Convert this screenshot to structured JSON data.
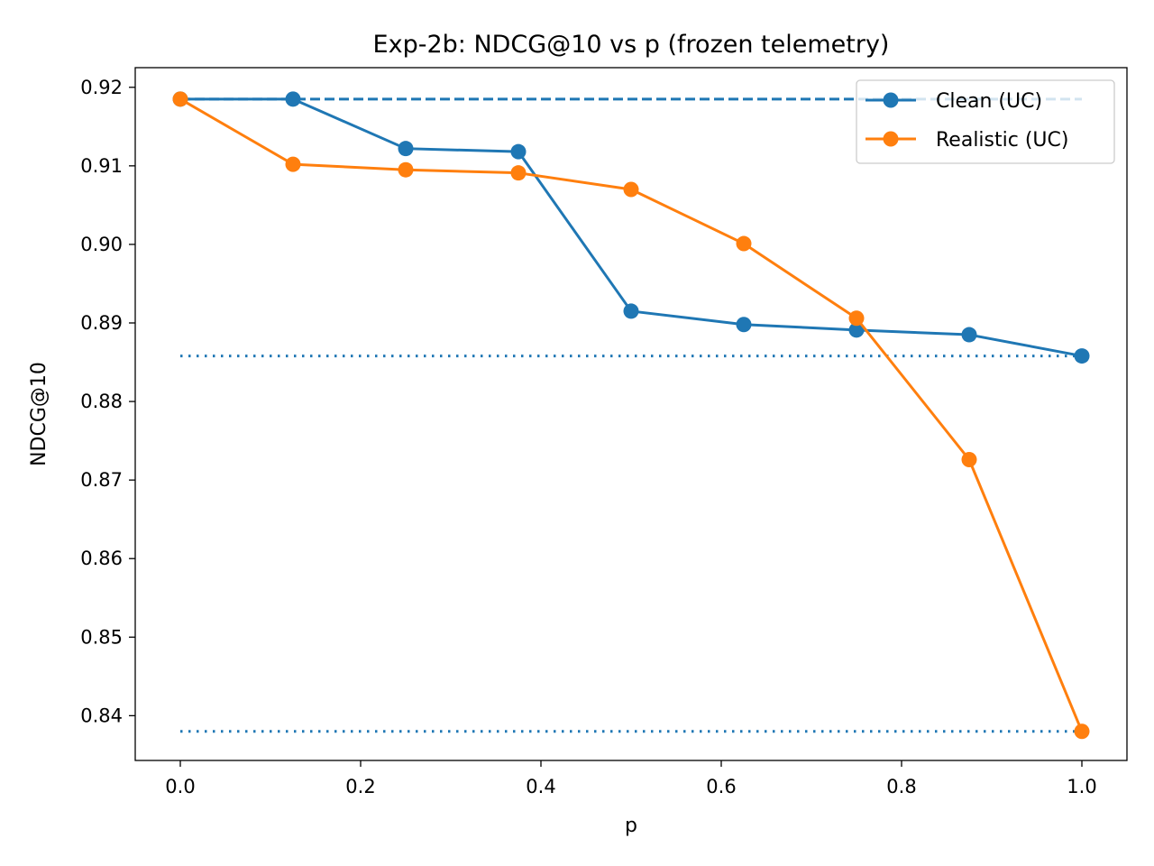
{
  "chart_data": {
    "type": "line",
    "title": "Exp-2b: NDCG@10 vs p (frozen telemetry)",
    "xlabel": "p",
    "ylabel": "NDCG@10",
    "xlim": [
      -0.05,
      1.05
    ],
    "ylim": [
      0.8343,
      0.9225
    ],
    "xticks": [
      0.0,
      0.2,
      0.4,
      0.6,
      0.8,
      1.0
    ],
    "xtick_labels": [
      "0.0",
      "0.2",
      "0.4",
      "0.6",
      "0.8",
      "1.0"
    ],
    "yticks": [
      0.84,
      0.85,
      0.86,
      0.87,
      0.88,
      0.89,
      0.9,
      0.91,
      0.92
    ],
    "ytick_labels": [
      "0.84",
      "0.85",
      "0.86",
      "0.87",
      "0.88",
      "0.89",
      "0.90",
      "0.91",
      "0.92"
    ],
    "grid": false,
    "legend_position": "top-right",
    "x": [
      0.0,
      0.125,
      0.25,
      0.375,
      0.5,
      0.625,
      0.75,
      0.875,
      1.0
    ],
    "series": [
      {
        "name": "Clean (UC)",
        "color": "#1f77b4",
        "values": [
          0.9185,
          0.9185,
          0.9122,
          0.9118,
          0.8915,
          0.8898,
          0.8891,
          0.8885,
          0.8858
        ]
      },
      {
        "name": "Realistic (UC)",
        "color": "#ff7f0e",
        "values": [
          0.9185,
          0.9102,
          0.9095,
          0.9091,
          0.907,
          0.9001,
          0.8906,
          0.8726,
          0.838
        ]
      }
    ],
    "reference_lines": [
      {
        "name": "clean-baseline-dashed",
        "style": "dashed",
        "color": "#1f77b4",
        "y": 0.9185,
        "x_range": [
          0.0,
          1.0
        ]
      },
      {
        "name": "clean-endpoint-dotted",
        "style": "dotted",
        "color": "#1f77b4",
        "y": 0.8858,
        "x_range": [
          0.0,
          1.0
        ]
      },
      {
        "name": "realistic-endpoint-dotted",
        "style": "dotted",
        "color": "#1f77b4",
        "y": 0.838,
        "x_range": [
          0.0,
          1.0
        ]
      }
    ]
  }
}
